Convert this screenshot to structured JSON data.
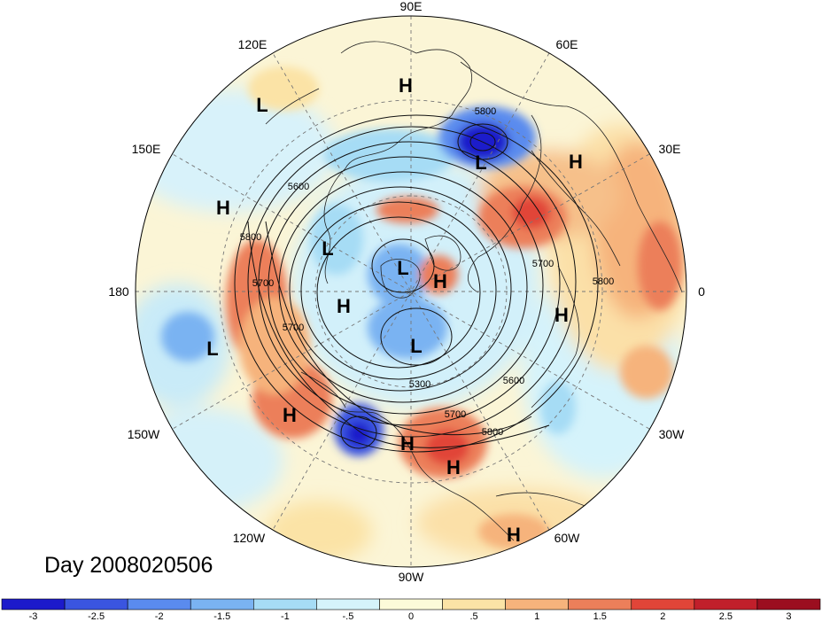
{
  "map": {
    "lon_labels": [
      {
        "id": "lon-90e",
        "text": "90E"
      },
      {
        "id": "lon-60e",
        "text": "60E"
      },
      {
        "id": "lon-30e",
        "text": "30E"
      },
      {
        "id": "lon-0",
        "text": "0"
      },
      {
        "id": "lon-30w",
        "text": "30W"
      },
      {
        "id": "lon-60w",
        "text": "60W"
      },
      {
        "id": "lon-90w",
        "text": "90W"
      },
      {
        "id": "lon-120w",
        "text": "120W"
      },
      {
        "id": "lon-150w",
        "text": "150W"
      },
      {
        "id": "lon-180",
        "text": "180"
      },
      {
        "id": "lon-150e",
        "text": "150E"
      },
      {
        "id": "lon-120e",
        "text": "120E"
      }
    ],
    "pressure_centers": [
      "H",
      "L",
      "H",
      "H",
      "L",
      "H",
      "L",
      "H",
      "L",
      "L",
      "H",
      "H",
      "L",
      "H",
      "H",
      "H"
    ],
    "contour_labels": [
      "5800",
      "5600",
      "5800",
      "5700",
      "5700",
      "5300",
      "5600",
      "5700",
      "5800",
      "5800",
      "5600",
      "5700"
    ]
  },
  "title": "Day 2008020506",
  "colorbar": {
    "colors": [
      "#1c1acb",
      "#3a55e0",
      "#5a8bee",
      "#7ab3f2",
      "#a6dcf5",
      "#d5f3fb",
      "#fcfbd9",
      "#fbe3a6",
      "#f6b37c",
      "#ec7f5a",
      "#e14538",
      "#c11f2b",
      "#9b0e1f"
    ],
    "ticks": [
      "-3",
      "-2.5",
      "-2",
      "-1.5",
      "-1",
      "-.5",
      "0",
      ".5",
      "1",
      "1.5",
      "2",
      "2.5",
      "3"
    ]
  }
}
